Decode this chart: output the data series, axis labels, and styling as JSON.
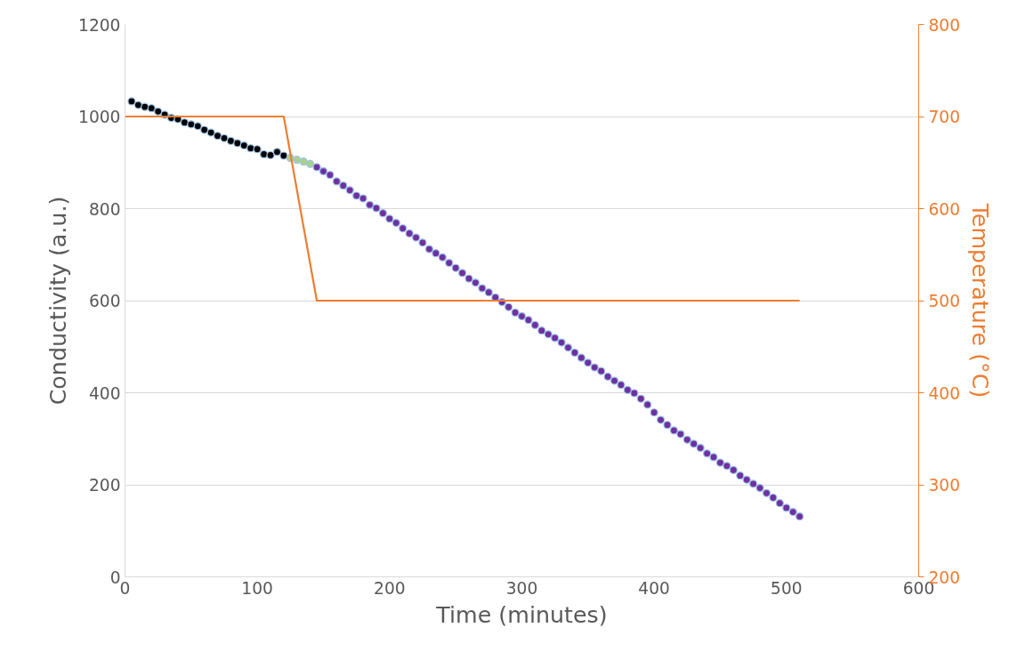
{
  "chart_data": {
    "type": "scatter",
    "xlabel": "Time (minutes)",
    "ylabel": "Conductivity (a.u.)",
    "y2label": "Temperature (°C)",
    "xlim": [
      0,
      600
    ],
    "xticks": [
      0,
      100,
      200,
      300,
      400,
      500,
      600
    ],
    "ylim": [
      0,
      1200
    ],
    "yticks": [
      0,
      200,
      400,
      600,
      800,
      1000,
      1200
    ],
    "y2lim": [
      200,
      800
    ],
    "y2ticks": [
      200,
      300,
      400,
      500,
      600,
      700,
      800
    ],
    "grid": "y",
    "marker": "circle",
    "series": [
      {
        "color": "#000000",
        "x": [
          5,
          10,
          15,
          20,
          25,
          30,
          35,
          40,
          45,
          50,
          55,
          60,
          65,
          70,
          75,
          80,
          85,
          90,
          95,
          100,
          105,
          110,
          115,
          120
        ],
        "values": [
          1033,
          1025,
          1021,
          1018,
          1011,
          1004,
          997,
          994,
          987,
          983,
          979,
          971,
          965,
          958,
          953,
          947,
          942,
          937,
          931,
          929,
          918,
          916,
          923,
          915
        ]
      },
      {
        "color": "#a9d18e",
        "x": [
          125,
          130,
          135,
          140
        ],
        "values": [
          910,
          906,
          902,
          897
        ]
      },
      {
        "color": "#7030a0",
        "x": [
          145,
          150,
          155,
          160,
          165,
          170,
          175,
          180,
          185,
          190,
          195,
          200,
          205,
          210,
          215,
          220,
          225,
          230,
          235,
          240,
          245,
          250,
          255,
          260,
          265,
          270,
          275,
          280,
          285,
          290,
          295,
          300,
          305,
          310,
          315,
          320,
          325,
          330,
          335,
          340,
          345,
          350,
          355,
          360,
          365,
          370,
          375,
          380,
          385,
          390,
          395,
          400,
          405,
          410,
          415,
          420,
          425,
          430,
          435,
          440,
          445,
          450,
          455,
          460,
          465,
          470,
          475,
          480,
          485,
          490,
          495,
          500,
          505,
          510
        ],
        "values": [
          890,
          881,
          873,
          859,
          850,
          840,
          828,
          822,
          808,
          801,
          790,
          778,
          769,
          757,
          746,
          737,
          726,
          712,
          703,
          694,
          682,
          671,
          660,
          648,
          639,
          627,
          618,
          607,
          597,
          586,
          574,
          566,
          558,
          547,
          535,
          527,
          519,
          509,
          498,
          487,
          476,
          465,
          455,
          447,
          435,
          426,
          417,
          406,
          399,
          387,
          374,
          357,
          341,
          330,
          318,
          310,
          298,
          289,
          280,
          268,
          260,
          248,
          241,
          232,
          220,
          211,
          202,
          193,
          182,
          172,
          160,
          150,
          141,
          131
        ]
      },
      {
        "type": "line",
        "axis": "y2",
        "color": "#ed7d31",
        "marker": "none",
        "x": [
          0,
          120,
          145,
          510
        ],
        "values": [
          700,
          700,
          500,
          500
        ]
      }
    ]
  }
}
